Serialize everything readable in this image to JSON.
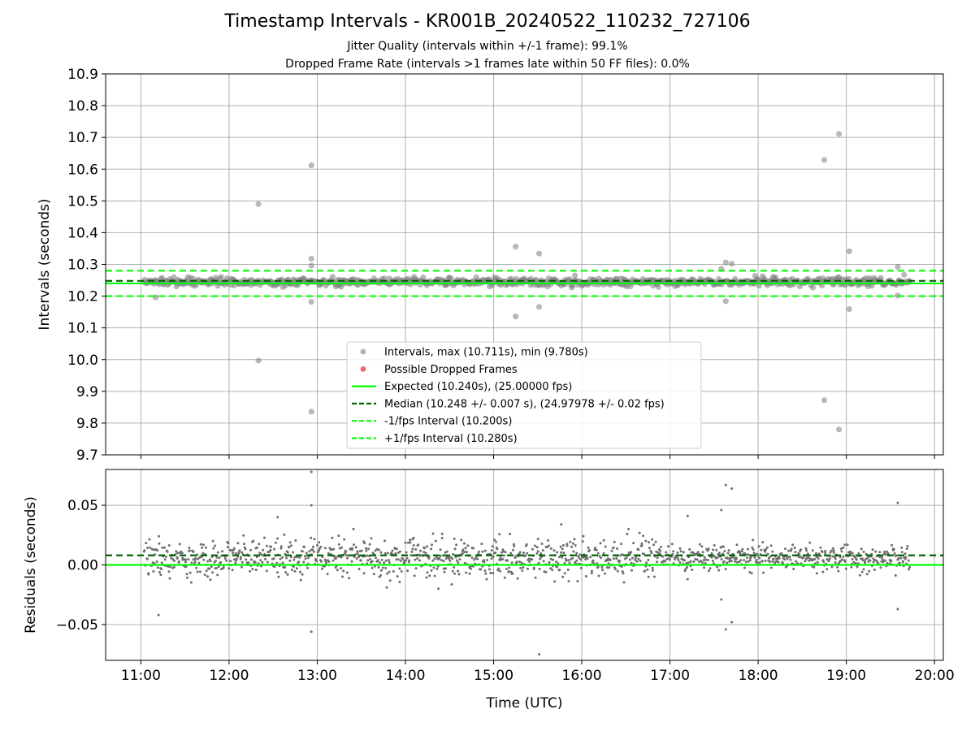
{
  "title": "Timestamp Intervals - KR001B_20240522_110232_727106",
  "subtitle_1": "Jitter Quality (intervals within +/-1 frame): 99.1%",
  "subtitle_2": "Dropped Frame Rate (intervals >1 frames late within 50 FF files): 0.0%",
  "colors": {
    "points": "#808080",
    "dropped": "#f05a5a",
    "expected": "#00ff00",
    "median": "#006400",
    "bounds": "#00ff00",
    "grid": "#b0b0b0"
  },
  "chart_data": [
    {
      "type": "scatter",
      "panel": "intervals",
      "ylabel": "Intervals (seconds)",
      "xlabel": "",
      "xlim": [
        "10:36",
        "20:06"
      ],
      "ylim": [
        9.7,
        10.9
      ],
      "grid": true,
      "legend_position": "lower-center",
      "x_ticks": [
        "11:00",
        "12:00",
        "13:00",
        "14:00",
        "15:00",
        "16:00",
        "17:00",
        "18:00",
        "19:00",
        "20:00"
      ],
      "y_ticks": [
        "9.7",
        "9.8",
        "9.9",
        "10.0",
        "10.1",
        "10.2",
        "10.3",
        "10.4",
        "10.5",
        "10.6",
        "10.7",
        "10.8",
        "10.9"
      ],
      "series": [
        {
          "name": "Intervals, max (10.711s), min (9.780s)",
          "kind": "scatter",
          "time_range": [
            "11:02",
            "19:43"
          ],
          "typical_range": [
            10.22,
            10.27
          ],
          "outliers": [
            {
              "time": "11:10",
              "value": 10.196
            },
            {
              "time": "12:20",
              "value": 10.49
            },
            {
              "time": "12:20",
              "value": 9.997
            },
            {
              "time": "12:56",
              "value": 10.612
            },
            {
              "time": "12:56",
              "value": 10.318
            },
            {
              "time": "12:56",
              "value": 10.296
            },
            {
              "time": "12:56",
              "value": 10.182
            },
            {
              "time": "12:56",
              "value": 9.836
            },
            {
              "time": "15:15",
              "value": 10.356
            },
            {
              "time": "15:15",
              "value": 10.136
            },
            {
              "time": "15:31",
              "value": 10.334
            },
            {
              "time": "15:31",
              "value": 10.166
            },
            {
              "time": "17:35",
              "value": 10.286
            },
            {
              "time": "17:38",
              "value": 10.306
            },
            {
              "time": "17:38",
              "value": 10.184
            },
            {
              "time": "17:42",
              "value": 10.302
            },
            {
              "time": "18:45",
              "value": 10.629
            },
            {
              "time": "18:45",
              "value": 9.872
            },
            {
              "time": "18:55",
              "value": 10.711
            },
            {
              "time": "18:55",
              "value": 9.78
            },
            {
              "time": "19:02",
              "value": 10.341
            },
            {
              "time": "19:02",
              "value": 10.159
            },
            {
              "time": "19:35",
              "value": 10.292
            },
            {
              "time": "19:35",
              "value": 10.202
            }
          ]
        },
        {
          "name": "Possible Dropped Frames",
          "kind": "scatter",
          "points": []
        },
        {
          "name": "Expected (10.240s), (25.00000 fps)",
          "kind": "hline",
          "value": 10.24
        },
        {
          "name": "Median (10.248 +/- 0.007 s), (24.97978 +/- 0.02 fps)",
          "kind": "hline",
          "value": 10.248
        },
        {
          "name": "-1/fps Interval (10.200s)",
          "kind": "hline",
          "value": 10.2
        },
        {
          "name": "+1/fps Interval (10.280s)",
          "kind": "hline",
          "value": 10.28
        }
      ]
    },
    {
      "type": "scatter",
      "panel": "residuals",
      "ylabel": "Residuals (seconds)",
      "xlabel": "Time (UTC)",
      "xlim": [
        "10:36",
        "20:06"
      ],
      "ylim": [
        -0.08,
        0.08
      ],
      "grid": true,
      "x_ticks": [
        "11:00",
        "12:00",
        "13:00",
        "14:00",
        "15:00",
        "16:00",
        "17:00",
        "18:00",
        "19:00",
        "20:00"
      ],
      "y_ticks": [
        "0.05",
        "0.00",
        "−0.05"
      ],
      "y_tick_values": [
        0.05,
        0.0,
        -0.05
      ],
      "series": [
        {
          "name": "residuals",
          "kind": "scatter",
          "time_range": [
            "11:02",
            "19:43"
          ],
          "typical_range": [
            -0.02,
            0.03
          ],
          "outliers": [
            {
              "time": "11:12",
              "value": -0.042
            },
            {
              "time": "12:33",
              "value": 0.04
            },
            {
              "time": "12:56",
              "value": 0.078
            },
            {
              "time": "12:56",
              "value": 0.05
            },
            {
              "time": "12:56",
              "value": -0.056
            },
            {
              "time": "15:31",
              "value": -0.075
            },
            {
              "time": "15:46",
              "value": 0.034
            },
            {
              "time": "17:12",
              "value": 0.041
            },
            {
              "time": "17:12",
              "value": -0.012
            },
            {
              "time": "17:35",
              "value": 0.046
            },
            {
              "time": "17:35",
              "value": -0.029
            },
            {
              "time": "17:38",
              "value": 0.067
            },
            {
              "time": "17:38",
              "value": -0.054
            },
            {
              "time": "17:42",
              "value": 0.064
            },
            {
              "time": "17:42",
              "value": -0.048
            },
            {
              "time": "19:35",
              "value": 0.052
            },
            {
              "time": "19:35",
              "value": -0.037
            }
          ]
        },
        {
          "name": "zero",
          "kind": "hline",
          "value": 0.0
        },
        {
          "name": "median offset",
          "kind": "hline",
          "value": 0.008
        }
      ]
    }
  ]
}
